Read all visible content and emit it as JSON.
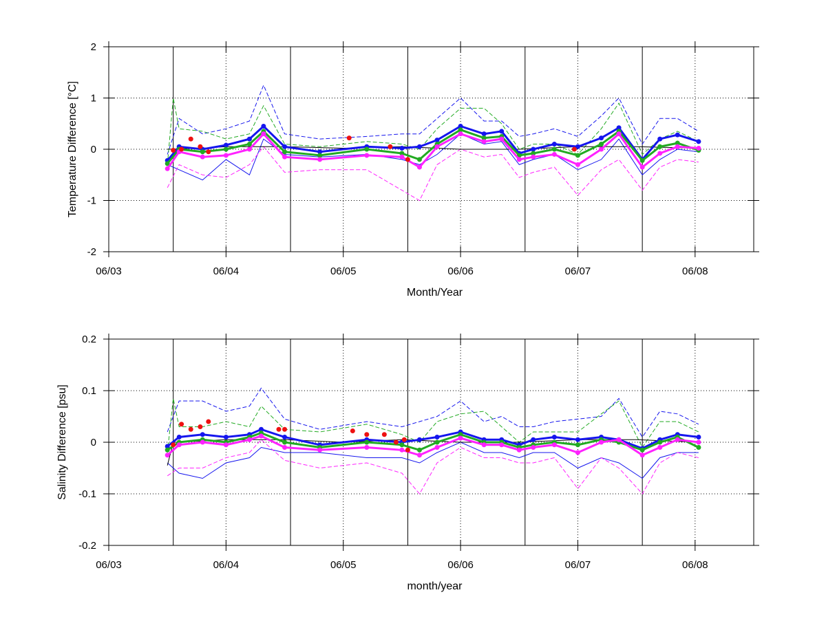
{
  "figure": {
    "background": "#ffffff",
    "colors": {
      "blue": "#1515ee",
      "green": "#22aa22",
      "magenta": "#ff22ff",
      "red": "#ee1111",
      "black": "#000000"
    }
  },
  "chart_data": [
    {
      "type": "line",
      "xlabel": "Month/Year",
      "ylabel": "Temperature Difference [°C]",
      "ylim": [
        -2,
        2
      ],
      "yticks": [
        -2,
        -1,
        0,
        1,
        2
      ],
      "xlim": [
        2003.0,
        2008.5
      ],
      "xticks": [
        2003,
        2004,
        2005,
        2006,
        2007,
        2008
      ],
      "xticklabels": [
        "06/03",
        "06/04",
        "06/05",
        "06/06",
        "06/07",
        "06/08"
      ],
      "vlines": [
        2003.55,
        2004.55,
        2005.55,
        2006.55,
        2007.55
      ],
      "grid": true,
      "series": [
        {
          "color": "blue",
          "style": "markers",
          "x": [
            2003.5,
            2003.6,
            2003.8,
            2004.0,
            2004.2,
            2004.32,
            2004.5,
            2004.8,
            2005.2,
            2005.5,
            2005.65,
            2005.8,
            2006.0,
            2006.2,
            2006.35,
            2006.5,
            2006.62,
            2006.8,
            2007.0,
            2007.2,
            2007.35,
            2007.55,
            2007.7,
            2007.85,
            2008.03
          ],
          "y": [
            -0.22,
            0.05,
            0.0,
            0.08,
            0.2,
            0.45,
            0.05,
            -0.05,
            0.05,
            0.02,
            0.05,
            0.18,
            0.45,
            0.3,
            0.35,
            -0.08,
            0.0,
            0.1,
            0.05,
            0.22,
            0.42,
            -0.2,
            0.2,
            0.28,
            0.15
          ]
        },
        {
          "color": "green",
          "style": "markers",
          "x": [
            2003.5,
            2003.6,
            2003.8,
            2004.0,
            2004.2,
            2004.32,
            2004.5,
            2004.8,
            2005.2,
            2005.5,
            2005.65,
            2005.8,
            2006.0,
            2006.2,
            2006.35,
            2006.5,
            2006.62,
            2006.8,
            2007.0,
            2007.2,
            2007.35,
            2007.55,
            2007.7,
            2007.85,
            2008.03
          ],
          "y": [
            -0.28,
            0.0,
            -0.05,
            0.0,
            0.1,
            0.35,
            -0.05,
            -0.12,
            0.0,
            -0.08,
            -0.2,
            0.1,
            0.38,
            0.22,
            0.25,
            -0.12,
            -0.08,
            0.0,
            -0.12,
            0.1,
            0.35,
            -0.22,
            0.05,
            0.12,
            -0.02
          ]
        },
        {
          "color": "magenta",
          "style": "markers",
          "x": [
            2003.5,
            2003.6,
            2003.8,
            2004.0,
            2004.2,
            2004.32,
            2004.5,
            2004.8,
            2005.2,
            2005.5,
            2005.65,
            2005.8,
            2006.0,
            2006.2,
            2006.35,
            2006.5,
            2006.62,
            2006.8,
            2007.0,
            2007.2,
            2007.35,
            2007.55,
            2007.7,
            2007.85,
            2008.03
          ],
          "y": [
            -0.38,
            -0.05,
            -0.15,
            -0.12,
            0.0,
            0.3,
            -0.15,
            -0.2,
            -0.12,
            -0.15,
            -0.35,
            0.05,
            0.3,
            0.15,
            0.2,
            -0.2,
            -0.15,
            -0.1,
            -0.3,
            0.0,
            0.3,
            -0.35,
            -0.08,
            0.05,
            0.02
          ]
        },
        {
          "color": "red",
          "style": "markers",
          "x": [
            2003.55,
            2003.62,
            2003.7,
            2003.78,
            2003.85,
            2005.05,
            2005.4,
            2005.55,
            2006.97
          ],
          "y": [
            -0.02,
            0.0,
            0.2,
            0.05,
            -0.05,
            0.22,
            0.05,
            -0.2,
            0.0
          ]
        },
        {
          "color": "blue",
          "style": "dash",
          "x": [
            2003.5,
            2003.6,
            2003.8,
            2004.0,
            2004.2,
            2004.32,
            2004.5,
            2004.8,
            2005.2,
            2005.5,
            2005.65,
            2005.8,
            2006.0,
            2006.2,
            2006.35,
            2006.5,
            2006.62,
            2006.8,
            2007.0,
            2007.2,
            2007.35,
            2007.55,
            2007.7,
            2007.85,
            2008.03
          ],
          "y": [
            -0.1,
            0.6,
            0.3,
            0.4,
            0.55,
            1.25,
            0.3,
            0.2,
            0.25,
            0.3,
            0.3,
            0.6,
            1.0,
            0.55,
            0.55,
            0.25,
            0.3,
            0.4,
            0.25,
            0.65,
            1.0,
            0.1,
            0.6,
            0.6,
            0.35
          ]
        },
        {
          "color": "blue",
          "style": "solid",
          "x": [
            2003.5,
            2003.6,
            2003.8,
            2004.0,
            2004.2,
            2004.32,
            2004.5,
            2004.8,
            2005.2,
            2005.5,
            2005.65,
            2005.8,
            2006.0,
            2006.2,
            2006.35,
            2006.5,
            2006.62,
            2006.8,
            2007.0,
            2007.2,
            2007.35,
            2007.55,
            2007.7,
            2007.85,
            2008.03
          ],
          "y": [
            -0.3,
            -0.4,
            -0.6,
            -0.2,
            -0.5,
            0.2,
            -0.1,
            -0.15,
            -0.1,
            -0.2,
            -0.3,
            -0.1,
            0.3,
            0.1,
            0.15,
            -0.3,
            -0.2,
            -0.1,
            -0.4,
            -0.2,
            0.2,
            -0.5,
            -0.2,
            0.0,
            -0.05
          ]
        },
        {
          "color": "green",
          "style": "dash",
          "x": [
            2003.5,
            2003.55,
            2003.6,
            2003.8,
            2004.0,
            2004.2,
            2004.32,
            2004.5,
            2004.8,
            2005.2,
            2005.5,
            2005.65,
            2005.8,
            2006.0,
            2006.2,
            2006.35,
            2006.5,
            2006.62,
            2006.8,
            2007.0,
            2007.2,
            2007.35,
            2007.55,
            2007.7,
            2007.85,
            2008.03
          ],
          "y": [
            -0.3,
            1.0,
            0.4,
            0.35,
            0.2,
            0.3,
            0.85,
            0.1,
            0.05,
            0.15,
            0.1,
            0.0,
            0.4,
            0.8,
            0.8,
            0.5,
            0.0,
            0.1,
            0.1,
            -0.1,
            0.4,
            0.9,
            -0.1,
            0.2,
            0.35,
            0.15
          ]
        },
        {
          "color": "magenta",
          "style": "dash",
          "x": [
            2003.5,
            2003.6,
            2003.8,
            2004.0,
            2004.2,
            2004.32,
            2004.5,
            2004.8,
            2005.2,
            2005.5,
            2005.65,
            2005.8,
            2006.0,
            2006.2,
            2006.35,
            2006.5,
            2006.62,
            2006.8,
            2007.0,
            2007.2,
            2007.35,
            2007.55,
            2007.7,
            2007.85,
            2008.03
          ],
          "y": [
            -0.75,
            -0.3,
            -0.5,
            -0.55,
            -0.3,
            0.05,
            -0.45,
            -0.4,
            -0.4,
            -0.8,
            -1.0,
            -0.3,
            0.0,
            -0.15,
            -0.1,
            -0.55,
            -0.45,
            -0.35,
            -0.9,
            -0.4,
            -0.2,
            -0.8,
            -0.35,
            -0.2,
            -0.25
          ]
        },
        {
          "color": "black",
          "style": "solid",
          "x": [
            2003.5,
            2003.8,
            2004.0,
            2004.5,
            2005.0,
            2005.5,
            2006.0,
            2006.5,
            2007.0,
            2007.5,
            2008.03
          ],
          "y": [
            0.0,
            0.02,
            0.05,
            0.05,
            0.02,
            0.05,
            0.0,
            0.0,
            0.05,
            0.05,
            0.02
          ]
        }
      ]
    },
    {
      "type": "line",
      "xlabel": "month/year",
      "ylabel": "Salinity Difference [psu]",
      "ylim": [
        -0.2,
        0.2
      ],
      "yticks": [
        -0.2,
        -0.1,
        0,
        0.1,
        0.2
      ],
      "yticklabels": [
        "-0.2",
        "-0.1",
        "0",
        "0.1",
        "0.2"
      ],
      "xlim": [
        2003.0,
        2008.5
      ],
      "xticks": [
        2003,
        2004,
        2005,
        2006,
        2007,
        2008
      ],
      "xticklabels": [
        "06/03",
        "06/04",
        "06/05",
        "06/06",
        "06/07",
        "06/08"
      ],
      "vlines": [
        2003.55,
        2004.55,
        2005.55,
        2006.55,
        2007.55
      ],
      "grid": true,
      "series": [
        {
          "color": "blue",
          "style": "markers",
          "x": [
            2003.5,
            2003.6,
            2003.8,
            2004.0,
            2004.2,
            2004.3,
            2004.5,
            2004.8,
            2005.2,
            2005.5,
            2005.65,
            2005.8,
            2006.0,
            2006.2,
            2006.35,
            2006.5,
            2006.62,
            2006.8,
            2007.0,
            2007.2,
            2007.35,
            2007.55,
            2007.7,
            2007.85,
            2008.03
          ],
          "y": [
            -0.008,
            0.01,
            0.015,
            0.01,
            0.015,
            0.025,
            0.01,
            -0.005,
            0.005,
            0.0,
            0.005,
            0.01,
            0.02,
            0.005,
            0.005,
            -0.005,
            0.005,
            0.01,
            0.005,
            0.01,
            0.005,
            -0.012,
            0.005,
            0.015,
            0.01
          ]
        },
        {
          "color": "green",
          "style": "markers",
          "x": [
            2003.5,
            2003.6,
            2003.8,
            2004.0,
            2004.2,
            2004.3,
            2004.5,
            2004.8,
            2005.2,
            2005.5,
            2005.65,
            2005.8,
            2006.0,
            2006.2,
            2006.35,
            2006.5,
            2006.62,
            2006.8,
            2007.0,
            2007.2,
            2007.35,
            2007.55,
            2007.7,
            2007.85,
            2008.03
          ],
          "y": [
            -0.015,
            0.0,
            0.005,
            0.0,
            0.01,
            0.018,
            0.0,
            -0.01,
            0.0,
            -0.005,
            -0.015,
            0.0,
            0.015,
            0.0,
            0.0,
            -0.01,
            -0.005,
            0.0,
            -0.005,
            0.005,
            0.0,
            -0.015,
            0.0,
            0.01,
            -0.01
          ]
        },
        {
          "color": "magenta",
          "style": "markers",
          "x": [
            2003.5,
            2003.6,
            2003.8,
            2004.0,
            2004.2,
            2004.3,
            2004.5,
            2004.8,
            2005.2,
            2005.5,
            2005.65,
            2005.8,
            2006.0,
            2006.2,
            2006.35,
            2006.5,
            2006.62,
            2006.8,
            2007.0,
            2007.2,
            2007.35,
            2007.55,
            2007.7,
            2007.85,
            2008.03
          ],
          "y": [
            -0.025,
            -0.005,
            0.0,
            -0.005,
            0.005,
            0.012,
            -0.01,
            -0.015,
            -0.01,
            -0.015,
            -0.025,
            -0.01,
            0.008,
            -0.005,
            -0.005,
            -0.015,
            -0.01,
            -0.005,
            -0.02,
            0.0,
            0.005,
            -0.025,
            -0.01,
            0.005,
            0.0
          ]
        },
        {
          "color": "red",
          "style": "markers",
          "x": [
            2003.55,
            2003.62,
            2003.7,
            2003.78,
            2003.85,
            2004.45,
            2004.5,
            2005.08,
            2005.2,
            2005.35,
            2005.45,
            2005.52,
            2005.55
          ],
          "y": [
            -0.005,
            0.035,
            0.025,
            0.03,
            0.04,
            0.025,
            0.025,
            0.022,
            0.015,
            0.015,
            0.0,
            0.005,
            -0.015
          ]
        },
        {
          "color": "blue",
          "style": "dash",
          "x": [
            2003.5,
            2003.6,
            2003.8,
            2004.0,
            2004.2,
            2004.3,
            2004.5,
            2004.8,
            2005.2,
            2005.5,
            2005.65,
            2005.8,
            2006.0,
            2006.2,
            2006.35,
            2006.5,
            2006.62,
            2006.8,
            2007.0,
            2007.2,
            2007.35,
            2007.55,
            2007.7,
            2007.85,
            2008.03
          ],
          "y": [
            0.02,
            0.08,
            0.08,
            0.06,
            0.07,
            0.105,
            0.045,
            0.025,
            0.04,
            0.03,
            0.04,
            0.05,
            0.08,
            0.04,
            0.05,
            0.03,
            0.03,
            0.04,
            0.045,
            0.05,
            0.085,
            0.01,
            0.06,
            0.055,
            0.035
          ]
        },
        {
          "color": "blue",
          "style": "solid",
          "x": [
            2003.5,
            2003.6,
            2003.8,
            2004.0,
            2004.2,
            2004.3,
            2004.5,
            2004.8,
            2005.2,
            2005.5,
            2005.65,
            2005.8,
            2006.0,
            2006.2,
            2006.35,
            2006.5,
            2006.62,
            2006.8,
            2007.0,
            2007.2,
            2007.35,
            2007.55,
            2007.7,
            2007.85,
            2008.03
          ],
          "y": [
            -0.04,
            -0.06,
            -0.07,
            -0.04,
            -0.03,
            -0.01,
            -0.02,
            -0.02,
            -0.03,
            -0.03,
            -0.04,
            -0.02,
            0.0,
            -0.02,
            -0.02,
            -0.03,
            -0.02,
            -0.02,
            -0.05,
            -0.03,
            -0.04,
            -0.07,
            -0.03,
            -0.02,
            -0.02
          ]
        },
        {
          "color": "green",
          "style": "dash",
          "x": [
            2003.5,
            2003.55,
            2003.6,
            2003.8,
            2004.0,
            2004.2,
            2004.3,
            2004.5,
            2004.8,
            2005.2,
            2005.5,
            2005.65,
            2005.8,
            2006.0,
            2006.2,
            2006.35,
            2006.5,
            2006.62,
            2006.8,
            2007.0,
            2007.2,
            2007.35,
            2007.55,
            2007.7,
            2007.85,
            2008.03
          ],
          "y": [
            -0.02,
            0.085,
            0.03,
            0.03,
            0.04,
            0.03,
            0.07,
            0.025,
            0.02,
            0.035,
            0.015,
            0.0,
            0.04,
            0.055,
            0.06,
            0.03,
            0.0,
            0.02,
            0.02,
            0.02,
            0.055,
            0.08,
            -0.01,
            0.04,
            0.04,
            0.02
          ]
        },
        {
          "color": "magenta",
          "style": "dash",
          "x": [
            2003.5,
            2003.6,
            2003.8,
            2004.0,
            2004.2,
            2004.3,
            2004.5,
            2004.8,
            2005.2,
            2005.5,
            2005.65,
            2005.8,
            2006.0,
            2006.2,
            2006.35,
            2006.5,
            2006.62,
            2006.8,
            2007.0,
            2007.2,
            2007.35,
            2007.55,
            2007.7,
            2007.85,
            2008.03
          ],
          "y": [
            -0.065,
            -0.05,
            -0.05,
            -0.03,
            -0.02,
            0.005,
            -0.035,
            -0.05,
            -0.04,
            -0.06,
            -0.1,
            -0.04,
            -0.01,
            -0.03,
            -0.03,
            -0.04,
            -0.04,
            -0.03,
            -0.09,
            -0.03,
            -0.05,
            -0.1,
            -0.04,
            -0.02,
            -0.03
          ]
        },
        {
          "color": "black",
          "style": "solid",
          "x": [
            2003.5,
            2003.55,
            2003.6,
            2004.0,
            2004.5,
            2005.0,
            2005.5,
            2006.0,
            2006.5,
            2007.0,
            2007.5,
            2008.03
          ],
          "y": [
            -0.045,
            0.0,
            0.0,
            0.005,
            0.005,
            0.0,
            0.005,
            0.0,
            0.0,
            0.005,
            0.005,
            0.0
          ]
        }
      ]
    }
  ]
}
